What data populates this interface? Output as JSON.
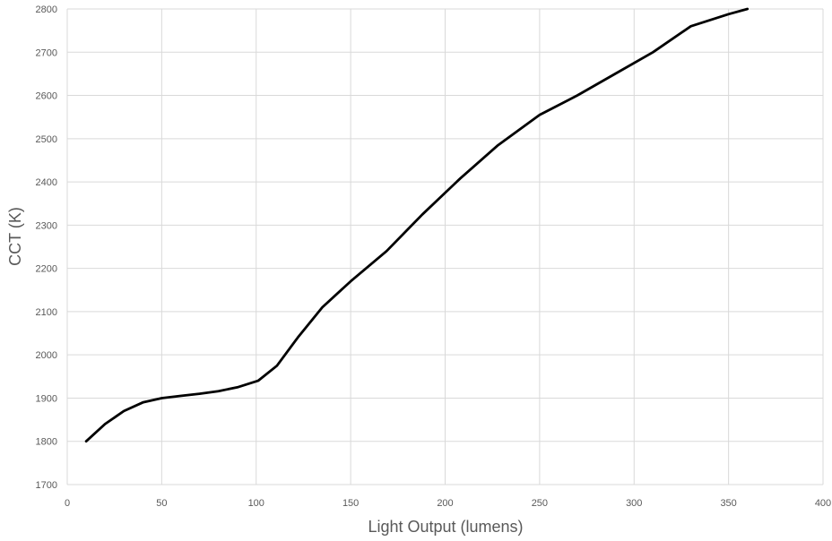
{
  "chart_data": {
    "type": "line",
    "title": "",
    "xlabel": "Light Output (lumens)",
    "ylabel": "CCT (K)",
    "xlim": [
      0,
      400
    ],
    "ylim": [
      1700,
      2800
    ],
    "x_ticks": [
      0,
      50,
      100,
      150,
      200,
      250,
      300,
      350,
      400
    ],
    "y_ticks": [
      1700,
      1800,
      1900,
      2000,
      2100,
      2200,
      2300,
      2400,
      2500,
      2600,
      2700,
      2800
    ],
    "grid": true,
    "legend": "none",
    "colors": {
      "line": "#000000",
      "grid": "#d9d9d9",
      "text": "#595959"
    },
    "series": [
      {
        "x": [
          10,
          20,
          30,
          40,
          50,
          60,
          70,
          80,
          90,
          101,
          111,
          122,
          135,
          150,
          169,
          188,
          208,
          228,
          250,
          270,
          290,
          310,
          330,
          350,
          360
        ],
        "y": [
          1800,
          1840,
          1870,
          1890,
          1900,
          1905,
          1910,
          1916,
          1925,
          1940,
          1975,
          2040,
          2110,
          2170,
          2240,
          2325,
          2408,
          2485,
          2555,
          2600,
          2650,
          2700,
          2760,
          2788,
          2800
        ]
      }
    ]
  }
}
